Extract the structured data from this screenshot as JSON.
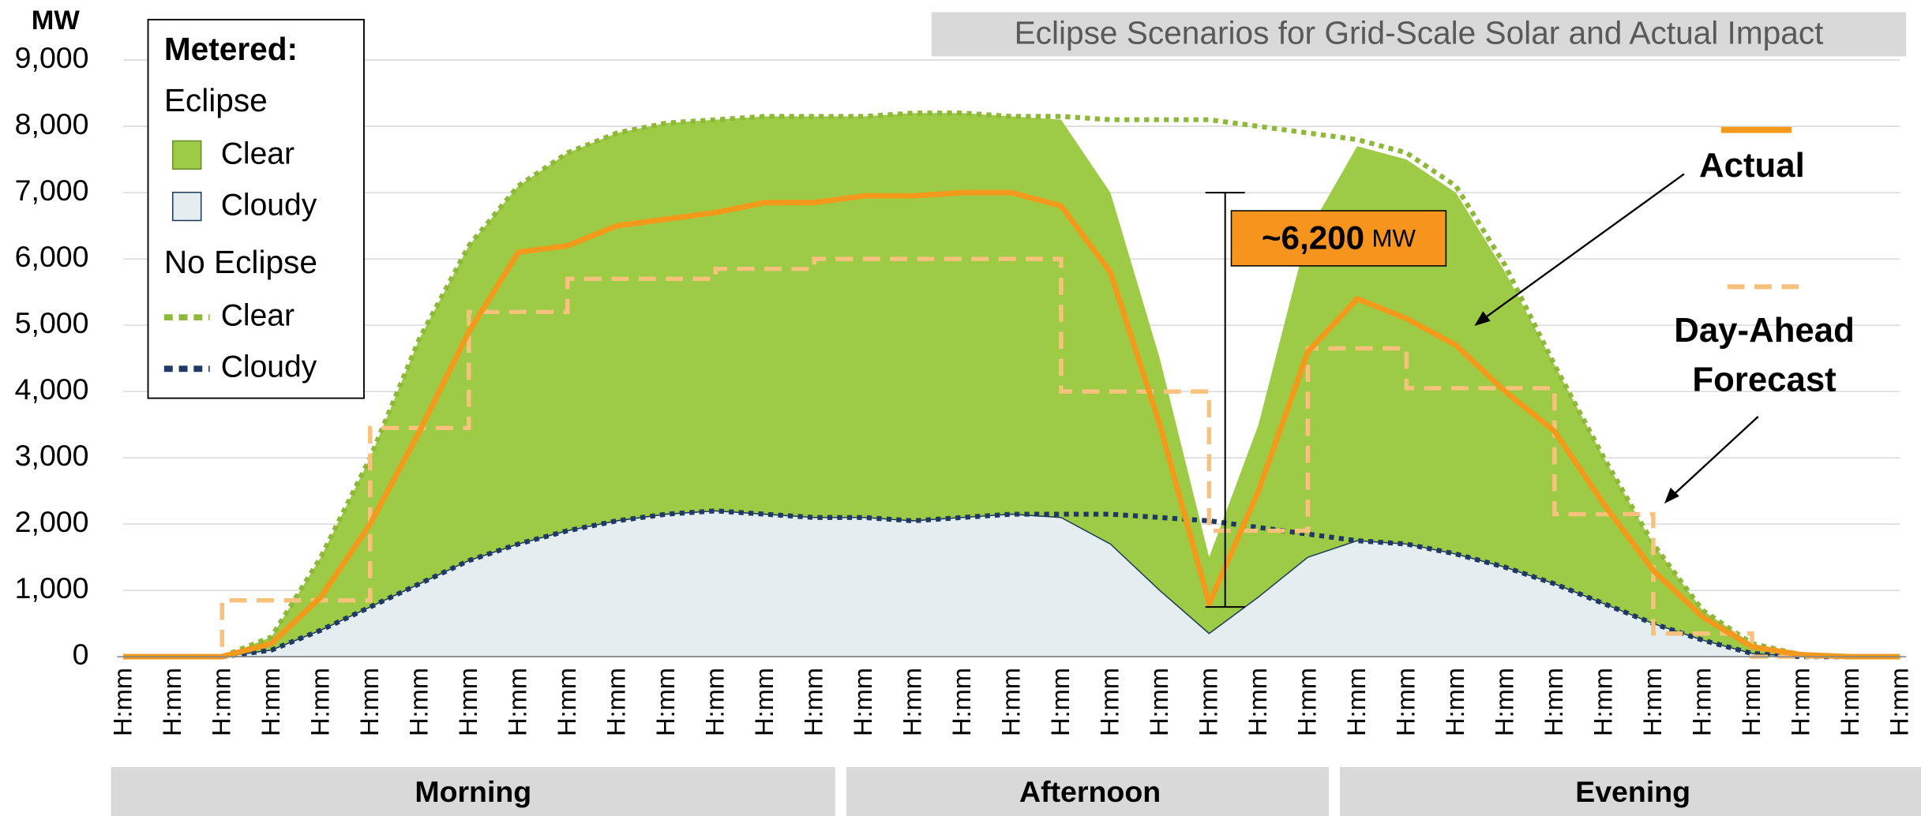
{
  "chart_data": {
    "type": "area",
    "title": "Eclipse Scenarios for Grid-Scale Solar and Actual Impact",
    "y_label": "MW",
    "categories": [
      "H:mm",
      "H:mm",
      "H:mm",
      "H:mm",
      "H:mm",
      "H:mm",
      "H:mm",
      "H:mm",
      "H:mm",
      "H:mm",
      "H:mm",
      "H:mm",
      "H:mm",
      "H:mm",
      "H:mm",
      "H:mm",
      "H:mm",
      "H:mm",
      "H:mm",
      "H:mm",
      "H:mm",
      "H:mm",
      "H:mm",
      "H:mm",
      "H:mm",
      "H:mm",
      "H:mm",
      "H:mm",
      "H:mm",
      "H:mm",
      "H:mm",
      "H:mm",
      "H:mm",
      "H:mm",
      "H:mm",
      "H:mm",
      "H:mm"
    ],
    "sections": [
      {
        "label": "Morning",
        "span": [
          0,
          14
        ]
      },
      {
        "label": "Afternoon",
        "span": [
          15,
          24
        ]
      },
      {
        "label": "Evening",
        "span": [
          25,
          36
        ]
      }
    ],
    "ylim": [
      0,
      9000
    ],
    "yticks": [
      0,
      {
        "value": 1000,
        "label": "1,000"
      },
      {
        "value": 2000,
        "label": "2,000"
      },
      {
        "value": 3000,
        "label": "3,000"
      },
      {
        "value": 4000,
        "label": "4,000"
      },
      {
        "value": 5000,
        "label": "5,000"
      },
      {
        "value": 6000,
        "label": "6,000"
      },
      {
        "value": 7000,
        "label": "7,000"
      },
      {
        "value": 8000,
        "label": "8,000"
      },
      {
        "value": 9000,
        "label": "9,000"
      }
    ],
    "grid": true,
    "legend": {
      "title": "Metered:",
      "position": "upper left"
    },
    "series_groups": [
      {
        "name": "Eclipse",
        "series": [
          {
            "name": "Clear",
            "style": "area",
            "color": "#9dcb45",
            "values": [
              0,
              0,
              0,
              300,
              1500,
              3000,
              4800,
              6200,
              7100,
              7600,
              7900,
              8050,
              8100,
              8150,
              8150,
              8150,
              8200,
              8200,
              8150,
              8100,
              7000,
              4500,
              1500,
              3500,
              6400,
              7700,
              7500,
              7000,
              5800,
              4400,
              3000,
              1700,
              700,
              200,
              30,
              0,
              0
            ]
          },
          {
            "name": "Cloudy",
            "style": "area",
            "color": "#e4eef0",
            "edge": "#1f3d5a",
            "values": [
              0,
              0,
              0,
              100,
              400,
              750,
              1100,
              1450,
              1700,
              1900,
              2050,
              2150,
              2200,
              2150,
              2100,
              2100,
              2050,
              2100,
              2150,
              2100,
              1700,
              1000,
              350,
              900,
              1500,
              1750,
              1700,
              1550,
              1350,
              1100,
              800,
              500,
              250,
              50,
              0,
              0,
              0
            ]
          }
        ]
      },
      {
        "name": "No Eclipse",
        "series": [
          {
            "name": "Clear",
            "style": "dotted",
            "color": "#8db83a",
            "values": [
              0,
              0,
              0,
              300,
              1500,
              3000,
              4800,
              6200,
              7100,
              7600,
              7900,
              8050,
              8100,
              8150,
              8150,
              8150,
              8200,
              8200,
              8150,
              8150,
              8100,
              8100,
              8100,
              8000,
              7900,
              7800,
              7600,
              7100,
              5900,
              4400,
              3000,
              1700,
              700,
              200,
              30,
              0,
              0
            ]
          },
          {
            "name": "Cloudy",
            "style": "dotted",
            "color": "#1f3864",
            "values": [
              0,
              0,
              0,
              100,
              400,
              750,
              1100,
              1450,
              1700,
              1900,
              2050,
              2150,
              2200,
              2150,
              2100,
              2100,
              2050,
              2100,
              2150,
              2150,
              2150,
              2100,
              2050,
              1950,
              1850,
              1750,
              1700,
              1550,
              1350,
              1100,
              800,
              500,
              250,
              50,
              0,
              0,
              0
            ]
          }
        ]
      }
    ],
    "series": [
      {
        "name": "Actual",
        "style": "line",
        "color": "#f39a1d",
        "values": [
          0,
          0,
          0,
          200,
          900,
          2000,
          3400,
          4900,
          6100,
          6200,
          6500,
          6600,
          6700,
          6850,
          6850,
          6950,
          6950,
          7000,
          7000,
          6800,
          5800,
          3500,
          800,
          2500,
          4600,
          5400,
          5100,
          4700,
          4000,
          3400,
          2300,
          1300,
          600,
          150,
          30,
          0,
          0
        ]
      },
      {
        "name": "Day-Ahead Forecast",
        "style": "step",
        "color": "#f9c27c",
        "values": [
          0,
          0,
          850,
          850,
          850,
          3450,
          3450,
          5200,
          5200,
          5700,
          5700,
          5700,
          5850,
          5850,
          6000,
          6000,
          6000,
          6000,
          6000,
          4000,
          4000,
          4000,
          1900,
          1900,
          4650,
          4650,
          4050,
          4050,
          4050,
          2150,
          2150,
          350,
          350,
          0,
          0,
          0,
          0
        ]
      }
    ],
    "annotation": {
      "label": "~6,200",
      "unit": "MW",
      "from": 7000,
      "to": 750,
      "at": 22
    }
  }
}
